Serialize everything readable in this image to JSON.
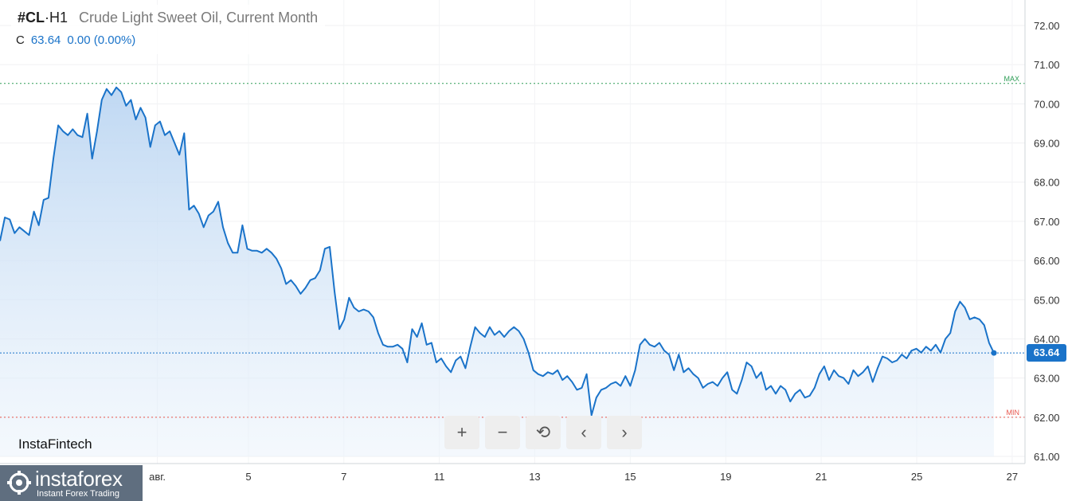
{
  "header": {
    "symbol": "#CL",
    "dot": "·",
    "timeframe": "H1",
    "name": "Crude Light Sweet Oil, Current Month",
    "ohlc_label": "C",
    "close": "63.64",
    "change": "0.00 (0.00%)"
  },
  "brand": "InstaFintech",
  "logo": {
    "name": "instaforex",
    "tagline": "Instant Forex Trading"
  },
  "toolbar": {
    "zoom_in": "+",
    "zoom_out": "−",
    "reset": "⟲",
    "prev": "‹",
    "next": "›"
  },
  "price_badge": "63.64",
  "colors": {
    "line": "#1a73c9",
    "max": "#2e9e57",
    "min": "#e8534a",
    "current": "#1a73c9"
  },
  "chart_data": {
    "type": "area",
    "y_axis": {
      "ticks": [
        61,
        62,
        63,
        64,
        65,
        66,
        67,
        68,
        69,
        70,
        71,
        72
      ],
      "tick_labels": [
        "61.00",
        "62.00",
        "63.00",
        "64.00",
        "65.00",
        "66.00",
        "67.00",
        "68.00",
        "69.00",
        "70.00",
        "71.00",
        "72.00"
      ],
      "range": [
        60.85,
        72.3
      ]
    },
    "x_axis": {
      "ticks": [
        {
          "label": "авг.",
          "pos": 0.1535
        },
        {
          "label": "5",
          "pos": 0.2424
        },
        {
          "label": "7",
          "pos": 0.3355
        },
        {
          "label": "11",
          "pos": 0.4286
        },
        {
          "label": "13",
          "pos": 0.5217
        },
        {
          "label": "15",
          "pos": 0.6149
        },
        {
          "label": "19",
          "pos": 0.7081
        },
        {
          "label": "21",
          "pos": 0.8012
        },
        {
          "label": "25",
          "pos": 0.8944
        },
        {
          "label": "27",
          "pos": 0.9875
        }
      ]
    },
    "max_line": {
      "label": "MAX",
      "value": 70.52
    },
    "min_line": {
      "label": "MIN",
      "value": 62.0
    },
    "current": 63.64,
    "series": [
      {
        "values": [
          66.5,
          67.1,
          67.05,
          66.7,
          66.85,
          66.75,
          66.65,
          67.25,
          66.9,
          67.55,
          67.6,
          68.6,
          69.45,
          69.3,
          69.2,
          69.35,
          69.2,
          69.15,
          69.75,
          68.6,
          69.3,
          70.1,
          70.38,
          70.22,
          70.42,
          70.3,
          69.95,
          70.1,
          69.6,
          69.9,
          69.65,
          68.9,
          69.45,
          69.55,
          69.2,
          69.3,
          69.0,
          68.7,
          69.25,
          67.3,
          67.4,
          67.2,
          66.85,
          67.15,
          67.25,
          67.5,
          66.85,
          66.45,
          66.2,
          66.2,
          66.9,
          66.3,
          66.25,
          66.25,
          66.2,
          66.3,
          66.2,
          66.05,
          65.8,
          65.4,
          65.5,
          65.35,
          65.15,
          65.3,
          65.5,
          65.55,
          65.75,
          66.3,
          66.35,
          65.2,
          64.25,
          64.5,
          65.05,
          64.8,
          64.7,
          64.75,
          64.7,
          64.55,
          64.15,
          63.85,
          63.8,
          63.8,
          63.85,
          63.75,
          63.4,
          64.25,
          64.05,
          64.4,
          63.85,
          63.9,
          63.4,
          63.5,
          63.3,
          63.15,
          63.45,
          63.55,
          63.25,
          63.8,
          64.3,
          64.15,
          64.05,
          64.3,
          64.1,
          64.2,
          64.05,
          64.2,
          64.3,
          64.2,
          64.0,
          63.65,
          63.2,
          63.1,
          63.05,
          63.15,
          63.1,
          63.2,
          62.95,
          63.05,
          62.9,
          62.7,
          62.75,
          63.1,
          62.05,
          62.5,
          62.7,
          62.75,
          62.85,
          62.9,
          62.8,
          63.05,
          62.8,
          63.2,
          63.85,
          64.0,
          63.85,
          63.8,
          63.9,
          63.7,
          63.6,
          63.2,
          63.6,
          63.15,
          63.25,
          63.1,
          63.0,
          62.75,
          62.85,
          62.9,
          62.8,
          63.0,
          63.15,
          62.7,
          62.6,
          62.95,
          63.4,
          63.3,
          63.0,
          63.15,
          62.7,
          62.8,
          62.6,
          62.8,
          62.7,
          62.4,
          62.6,
          62.7,
          62.5,
          62.55,
          62.75,
          63.1,
          63.3,
          62.95,
          63.2,
          63.05,
          63.0,
          62.85,
          63.2,
          63.05,
          63.15,
          63.3,
          62.9,
          63.25,
          63.55,
          63.5,
          63.4,
          63.45,
          63.6,
          63.5,
          63.7,
          63.75,
          63.65,
          63.8,
          63.7,
          63.85,
          63.65,
          64.0,
          64.15,
          64.7,
          64.95,
          64.8,
          64.5,
          64.55,
          64.5,
          64.35,
          63.9,
          63.64
        ]
      }
    ]
  }
}
